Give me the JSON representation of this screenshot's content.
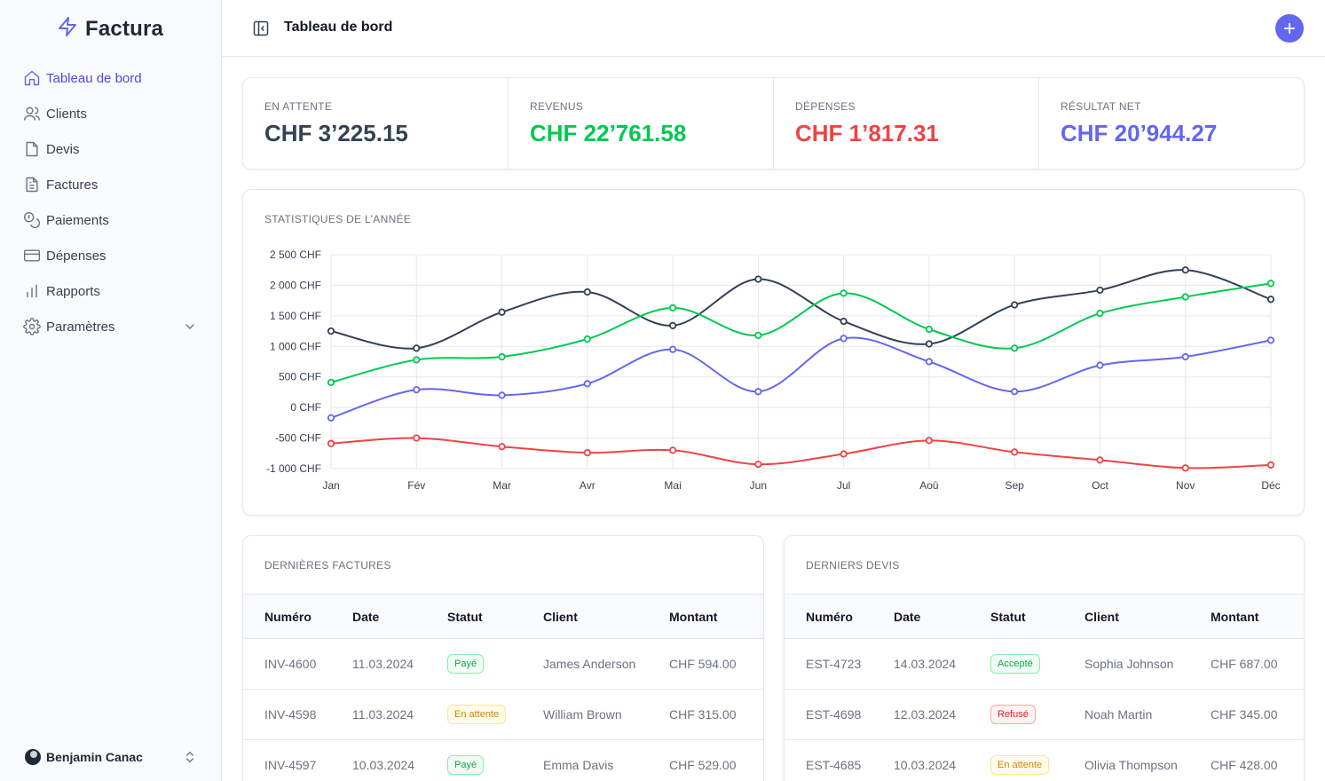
{
  "app": {
    "name": "Factura"
  },
  "sidebar": {
    "items": [
      {
        "label": "Tableau de bord",
        "icon": "home-icon"
      },
      {
        "label": "Clients",
        "icon": "users-icon"
      },
      {
        "label": "Devis",
        "icon": "file-icon"
      },
      {
        "label": "Factures",
        "icon": "file-text-icon"
      },
      {
        "label": "Paiements",
        "icon": "coins-icon"
      },
      {
        "label": "Dépenses",
        "icon": "credit-card-icon"
      },
      {
        "label": "Rapports",
        "icon": "bar-chart-icon"
      },
      {
        "label": "Paramètres",
        "icon": "gear-icon"
      }
    ],
    "user": {
      "name": "Benjamin Canac"
    }
  },
  "header": {
    "title": "Tableau de bord"
  },
  "colors": {
    "accent": "#6366f1",
    "green": "#00c950",
    "red": "#ef4444",
    "dark": "#334155"
  },
  "stats": [
    {
      "label": "EN ATTENTE",
      "value": "CHF 3’225.15",
      "color": "#334155"
    },
    {
      "label": "REVENUS",
      "value": "CHF 22’761.58",
      "color": "#00c950"
    },
    {
      "label": "DÉPENSES",
      "value": "CHF 1’817.31",
      "color": "#ef4444"
    },
    {
      "label": "RÉSULTAT NET",
      "value": "CHF 20’944.27",
      "color": "#6366f1"
    }
  ],
  "chart_title": "STATISTIQUES DE L’ANNÉE",
  "chart_data": {
    "type": "line",
    "categories": [
      "Jan",
      "Fév",
      "Mar",
      "Avr",
      "Mai",
      "Jun",
      "Jul",
      "Aoû",
      "Sep",
      "Oct",
      "Nov",
      "Déc"
    ],
    "y_ticks": [
      "2 500 CHF",
      "2 000 CHF",
      "1 500 CHF",
      "1 000 CHF",
      "500 CHF",
      "0 CHF",
      "-500 CHF",
      "-1 000 CHF"
    ],
    "ylim": [
      -1000,
      2500
    ],
    "grid": true,
    "series": [
      {
        "color": "#334155",
        "values": [
          1250,
          970,
          1560,
          1890,
          1340,
          2100,
          1410,
          1040,
          1680,
          1920,
          2250,
          1770
        ]
      },
      {
        "color": "#00c950",
        "values": [
          410,
          780,
          830,
          1120,
          1630,
          1180,
          1870,
          1280,
          970,
          1540,
          1810,
          2030
        ]
      },
      {
        "color": "#6366f1",
        "values": [
          -170,
          290,
          200,
          390,
          950,
          260,
          1130,
          750,
          260,
          690,
          830,
          1100
        ]
      },
      {
        "color": "#ef4444",
        "values": [
          -590,
          -500,
          -640,
          -740,
          -700,
          -930,
          -760,
          -540,
          -730,
          -860,
          -990,
          -940
        ]
      }
    ]
  },
  "invoices": {
    "title": "DERNIÈRES FACTURES",
    "headers": [
      "Numéro",
      "Date",
      "Statut",
      "Client",
      "Montant"
    ],
    "rows": [
      {
        "number": "INV-4600",
        "date": "11.03.2024",
        "status": "Payé",
        "client": "James Anderson",
        "amount": "CHF 594.00"
      },
      {
        "number": "INV-4598",
        "date": "11.03.2024",
        "status": "En attente",
        "client": "William Brown",
        "amount": "CHF 315.00"
      },
      {
        "number": "INV-4597",
        "date": "10.03.2024",
        "status": "Payé",
        "client": "Emma Davis",
        "amount": "CHF 529.00"
      }
    ]
  },
  "quotes": {
    "title": "DERNIERS DEVIS",
    "headers": [
      "Numéro",
      "Date",
      "Statut",
      "Client",
      "Montant"
    ],
    "rows": [
      {
        "number": "EST-4723",
        "date": "14.03.2024",
        "status": "Accepté",
        "client": "Sophia Johnson",
        "amount": "CHF 687.00"
      },
      {
        "number": "EST-4698",
        "date": "12.03.2024",
        "status": "Refusé",
        "client": "Noah Martin",
        "amount": "CHF 345.00"
      },
      {
        "number": "EST-4685",
        "date": "10.03.2024",
        "status": "En attente",
        "client": "Olivia Thompson",
        "amount": "CHF 428.00"
      }
    ]
  }
}
